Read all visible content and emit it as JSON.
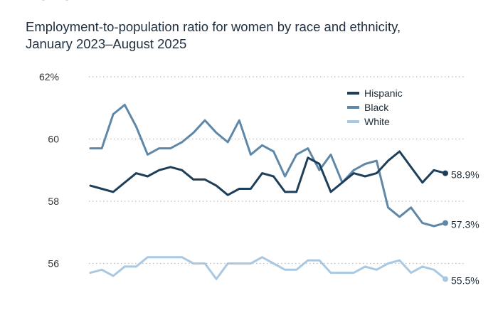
{
  "header": {
    "title_fragment": "2025",
    "subtitle_line1": "Employment-to-population ratio for women by race and ethnicity,",
    "subtitle_line2": "January 2023–August 2025"
  },
  "chart_data": {
    "type": "line",
    "title": "Employment-to-population ratio for women by race and ethnicity, January 2023–August 2025",
    "x_start": "2023-01",
    "x_end": "2025-08",
    "ylim": [
      54,
      62
    ],
    "yticks": [
      {
        "value": 62,
        "label": "62%"
      },
      {
        "value": 60,
        "label": "60"
      },
      {
        "value": 58,
        "label": "58"
      },
      {
        "value": 56,
        "label": "56"
      }
    ],
    "grid": "horizontal-dotted",
    "legend_position": "top-right",
    "series": [
      {
        "name": "Hispanic",
        "color": "#1d3f5a",
        "end_label": "58.9%",
        "values": [
          58.5,
          58.4,
          58.3,
          58.6,
          58.9,
          58.8,
          59.0,
          59.1,
          59.0,
          58.7,
          58.7,
          58.5,
          58.2,
          58.4,
          58.4,
          58.9,
          58.8,
          58.3,
          58.3,
          59.4,
          59.2,
          58.3,
          58.6,
          58.9,
          58.8,
          58.9,
          59.3,
          59.6,
          59.1,
          58.6,
          59.0,
          58.9
        ]
      },
      {
        "name": "Black",
        "color": "#5f88a8",
        "end_label": "57.3%",
        "values": [
          59.7,
          59.7,
          60.8,
          61.1,
          60.4,
          59.5,
          59.7,
          59.7,
          59.9,
          60.2,
          60.6,
          60.2,
          59.9,
          60.6,
          59.5,
          59.8,
          59.6,
          58.8,
          59.5,
          59.7,
          59.0,
          59.5,
          58.6,
          59.0,
          59.2,
          59.3,
          57.8,
          57.5,
          57.8,
          57.3,
          57.2,
          57.3
        ]
      },
      {
        "name": "White",
        "color": "#a9c8e2",
        "end_label": "55.5%",
        "values": [
          55.7,
          55.8,
          55.6,
          55.9,
          55.9,
          56.2,
          56.2,
          56.2,
          56.2,
          56.0,
          56.0,
          55.5,
          56.0,
          56.0,
          56.0,
          56.2,
          56.0,
          55.8,
          55.8,
          56.1,
          56.1,
          55.7,
          55.7,
          55.7,
          55.9,
          55.8,
          56.0,
          56.1,
          55.7,
          55.9,
          55.8,
          55.5
        ]
      }
    ]
  }
}
